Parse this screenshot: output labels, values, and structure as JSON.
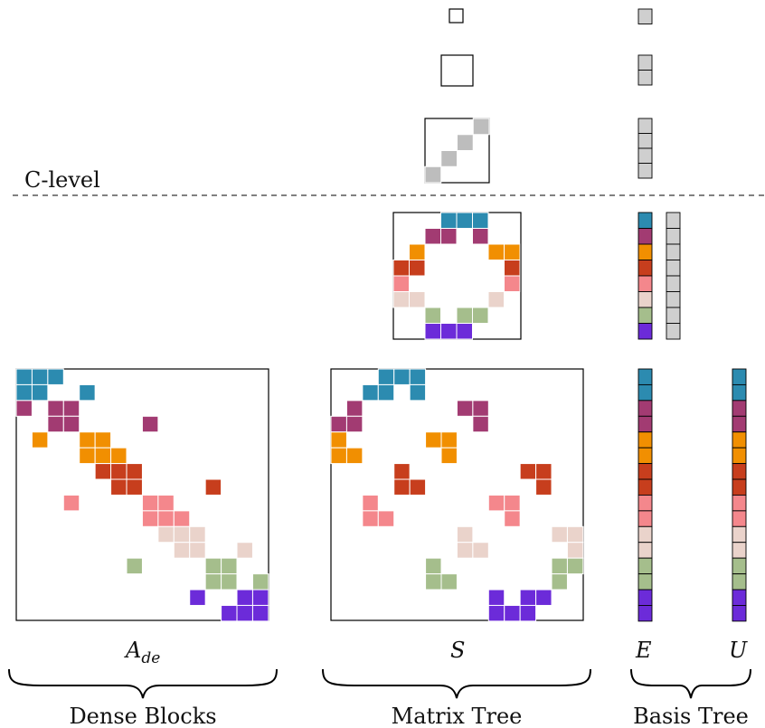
{
  "labels": {
    "level": "C-level",
    "dense_matrix": "A",
    "dense_matrix_sub": "de",
    "sparse_matrix": "S",
    "basis_e": "E",
    "basis_u": "U",
    "group_dense": "Dense Blocks",
    "group_matrix": "Matrix Tree",
    "group_basis": "Basis Tree"
  },
  "colors": {
    "teal": "#2c8bb0",
    "plum": "#a23b72",
    "orange": "#f18f01",
    "rust": "#c73e1d",
    "pink": "#f4878c",
    "blush": "#ead3cb",
    "sage": "#a5be8c",
    "violet": "#6c2bd9",
    "gray": "#cfcfcf",
    "gray_dark": "#bdbdbd"
  },
  "basis_color_order": [
    "teal",
    "plum",
    "orange",
    "rust",
    "pink",
    "blush",
    "sage",
    "violet"
  ],
  "dense_blocks": [
    {
      "r": 0,
      "c": 0,
      "k": "teal"
    },
    {
      "r": 0,
      "c": 1,
      "k": "teal"
    },
    {
      "r": 0,
      "c": 2,
      "k": "teal"
    },
    {
      "r": 1,
      "c": 0,
      "k": "teal"
    },
    {
      "r": 1,
      "c": 1,
      "k": "teal"
    },
    {
      "r": 1,
      "c": 4,
      "k": "teal"
    },
    {
      "r": 2,
      "c": 0,
      "k": "plum"
    },
    {
      "r": 2,
      "c": 2,
      "k": "plum"
    },
    {
      "r": 2,
      "c": 3,
      "k": "plum"
    },
    {
      "r": 3,
      "c": 2,
      "k": "plum"
    },
    {
      "r": 3,
      "c": 3,
      "k": "plum"
    },
    {
      "r": 3,
      "c": 8,
      "k": "plum"
    },
    {
      "r": 4,
      "c": 1,
      "k": "orange"
    },
    {
      "r": 4,
      "c": 4,
      "k": "orange"
    },
    {
      "r": 4,
      "c": 5,
      "k": "orange"
    },
    {
      "r": 5,
      "c": 4,
      "k": "orange"
    },
    {
      "r": 5,
      "c": 5,
      "k": "orange"
    },
    {
      "r": 5,
      "c": 6,
      "k": "orange"
    },
    {
      "r": 6,
      "c": 5,
      "k": "rust"
    },
    {
      "r": 6,
      "c": 6,
      "k": "rust"
    },
    {
      "r": 6,
      "c": 7,
      "k": "rust"
    },
    {
      "r": 7,
      "c": 6,
      "k": "rust"
    },
    {
      "r": 7,
      "c": 7,
      "k": "rust"
    },
    {
      "r": 7,
      "c": 12,
      "k": "rust"
    },
    {
      "r": 8,
      "c": 3,
      "k": "pink"
    },
    {
      "r": 8,
      "c": 8,
      "k": "pink"
    },
    {
      "r": 8,
      "c": 9,
      "k": "pink"
    },
    {
      "r": 9,
      "c": 8,
      "k": "pink"
    },
    {
      "r": 9,
      "c": 9,
      "k": "pink"
    },
    {
      "r": 9,
      "c": 10,
      "k": "pink"
    },
    {
      "r": 10,
      "c": 9,
      "k": "blush"
    },
    {
      "r": 10,
      "c": 10,
      "k": "blush"
    },
    {
      "r": 10,
      "c": 11,
      "k": "blush"
    },
    {
      "r": 11,
      "c": 10,
      "k": "blush"
    },
    {
      "r": 11,
      "c": 11,
      "k": "blush"
    },
    {
      "r": 11,
      "c": 14,
      "k": "blush"
    },
    {
      "r": 12,
      "c": 7,
      "k": "sage"
    },
    {
      "r": 12,
      "c": 12,
      "k": "sage"
    },
    {
      "r": 12,
      "c": 13,
      "k": "sage"
    },
    {
      "r": 13,
      "c": 12,
      "k": "sage"
    },
    {
      "r": 13,
      "c": 13,
      "k": "sage"
    },
    {
      "r": 13,
      "c": 15,
      "k": "sage"
    },
    {
      "r": 14,
      "c": 11,
      "k": "violet"
    },
    {
      "r": 14,
      "c": 14,
      "k": "violet"
    },
    {
      "r": 14,
      "c": 15,
      "k": "violet"
    },
    {
      "r": 15,
      "c": 13,
      "k": "violet"
    },
    {
      "r": 15,
      "c": 14,
      "k": "violet"
    },
    {
      "r": 15,
      "c": 15,
      "k": "violet"
    }
  ],
  "sparse_blocks": [
    {
      "r": 0,
      "c": 3,
      "k": "teal"
    },
    {
      "r": 0,
      "c": 4,
      "k": "teal"
    },
    {
      "r": 0,
      "c": 5,
      "k": "teal"
    },
    {
      "r": 1,
      "c": 2,
      "k": "teal"
    },
    {
      "r": 1,
      "c": 3,
      "k": "teal"
    },
    {
      "r": 1,
      "c": 5,
      "k": "teal"
    },
    {
      "r": 2,
      "c": 1,
      "k": "plum"
    },
    {
      "r": 2,
      "c": 8,
      "k": "plum"
    },
    {
      "r": 2,
      "c": 9,
      "k": "plum"
    },
    {
      "r": 3,
      "c": 0,
      "k": "plum"
    },
    {
      "r": 3,
      "c": 1,
      "k": "plum"
    },
    {
      "r": 3,
      "c": 9,
      "k": "plum"
    },
    {
      "r": 4,
      "c": 0,
      "k": "orange"
    },
    {
      "r": 4,
      "c": 6,
      "k": "orange"
    },
    {
      "r": 4,
      "c": 7,
      "k": "orange"
    },
    {
      "r": 5,
      "c": 0,
      "k": "orange"
    },
    {
      "r": 5,
      "c": 1,
      "k": "orange"
    },
    {
      "r": 5,
      "c": 7,
      "k": "orange"
    },
    {
      "r": 6,
      "c": 4,
      "k": "rust"
    },
    {
      "r": 6,
      "c": 12,
      "k": "rust"
    },
    {
      "r": 6,
      "c": 13,
      "k": "rust"
    },
    {
      "r": 7,
      "c": 4,
      "k": "rust"
    },
    {
      "r": 7,
      "c": 5,
      "k": "rust"
    },
    {
      "r": 7,
      "c": 13,
      "k": "rust"
    },
    {
      "r": 8,
      "c": 2,
      "k": "pink"
    },
    {
      "r": 8,
      "c": 10,
      "k": "pink"
    },
    {
      "r": 8,
      "c": 11,
      "k": "pink"
    },
    {
      "r": 9,
      "c": 2,
      "k": "pink"
    },
    {
      "r": 9,
      "c": 3,
      "k": "pink"
    },
    {
      "r": 9,
      "c": 11,
      "k": "pink"
    },
    {
      "r": 10,
      "c": 8,
      "k": "blush"
    },
    {
      "r": 10,
      "c": 14,
      "k": "blush"
    },
    {
      "r": 10,
      "c": 15,
      "k": "blush"
    },
    {
      "r": 11,
      "c": 8,
      "k": "blush"
    },
    {
      "r": 11,
      "c": 9,
      "k": "blush"
    },
    {
      "r": 11,
      "c": 15,
      "k": "blush"
    },
    {
      "r": 12,
      "c": 6,
      "k": "sage"
    },
    {
      "r": 12,
      "c": 14,
      "k": "sage"
    },
    {
      "r": 12,
      "c": 15,
      "k": "sage"
    },
    {
      "r": 13,
      "c": 6,
      "k": "sage"
    },
    {
      "r": 13,
      "c": 7,
      "k": "sage"
    },
    {
      "r": 13,
      "c": 14,
      "k": "sage"
    },
    {
      "r": 14,
      "c": 10,
      "k": "violet"
    },
    {
      "r": 14,
      "c": 12,
      "k": "violet"
    },
    {
      "r": 14,
      "c": 13,
      "k": "violet"
    },
    {
      "r": 15,
      "c": 10,
      "k": "violet"
    },
    {
      "r": 15,
      "c": 11,
      "k": "violet"
    },
    {
      "r": 15,
      "c": 12,
      "k": "violet"
    }
  ],
  "coarse_blocks": [
    {
      "r": 0,
      "c": 3,
      "k": "teal"
    },
    {
      "r": 0,
      "c": 4,
      "k": "teal"
    },
    {
      "r": 0,
      "c": 5,
      "k": "teal"
    },
    {
      "r": 1,
      "c": 2,
      "k": "plum"
    },
    {
      "r": 1,
      "c": 3,
      "k": "plum"
    },
    {
      "r": 1,
      "c": 5,
      "k": "plum"
    },
    {
      "r": 2,
      "c": 1,
      "k": "orange"
    },
    {
      "r": 2,
      "c": 6,
      "k": "orange"
    },
    {
      "r": 2,
      "c": 7,
      "k": "orange"
    },
    {
      "r": 3,
      "c": 0,
      "k": "rust"
    },
    {
      "r": 3,
      "c": 1,
      "k": "rust"
    },
    {
      "r": 3,
      "c": 7,
      "k": "rust"
    },
    {
      "r": 4,
      "c": 0,
      "k": "pink"
    },
    {
      "r": 4,
      "c": 7,
      "k": "pink"
    },
    {
      "r": 5,
      "c": 0,
      "k": "blush"
    },
    {
      "r": 5,
      "c": 1,
      "k": "blush"
    },
    {
      "r": 5,
      "c": 6,
      "k": "blush"
    },
    {
      "r": 6,
      "c": 2,
      "k": "sage"
    },
    {
      "r": 6,
      "c": 4,
      "k": "sage"
    },
    {
      "r": 6,
      "c": 5,
      "k": "sage"
    },
    {
      "r": 7,
      "c": 2,
      "k": "violet"
    },
    {
      "r": 7,
      "c": 3,
      "k": "violet"
    },
    {
      "r": 7,
      "c": 4,
      "k": "violet"
    }
  ],
  "upper_diag_blocks": [
    {
      "r": 0,
      "c": 3
    },
    {
      "r": 1,
      "c": 2
    },
    {
      "r": 2,
      "c": 1
    },
    {
      "r": 3,
      "c": 0
    }
  ]
}
